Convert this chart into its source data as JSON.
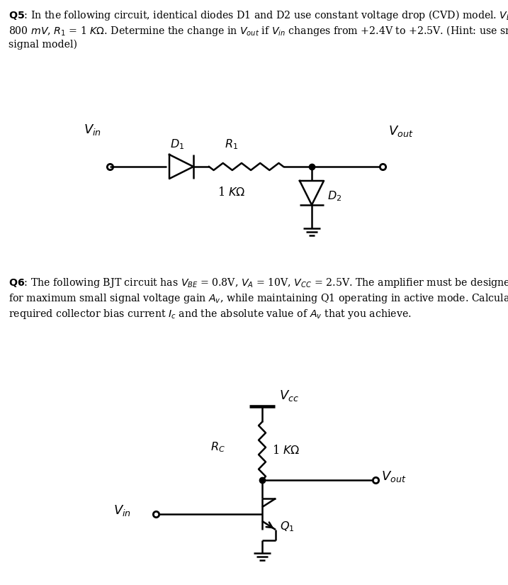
{
  "bg_color": "#ffffff",
  "text_color": "#000000",
  "line_color": "#000000",
  "fig_width": 7.17,
  "fig_height": 8.25
}
